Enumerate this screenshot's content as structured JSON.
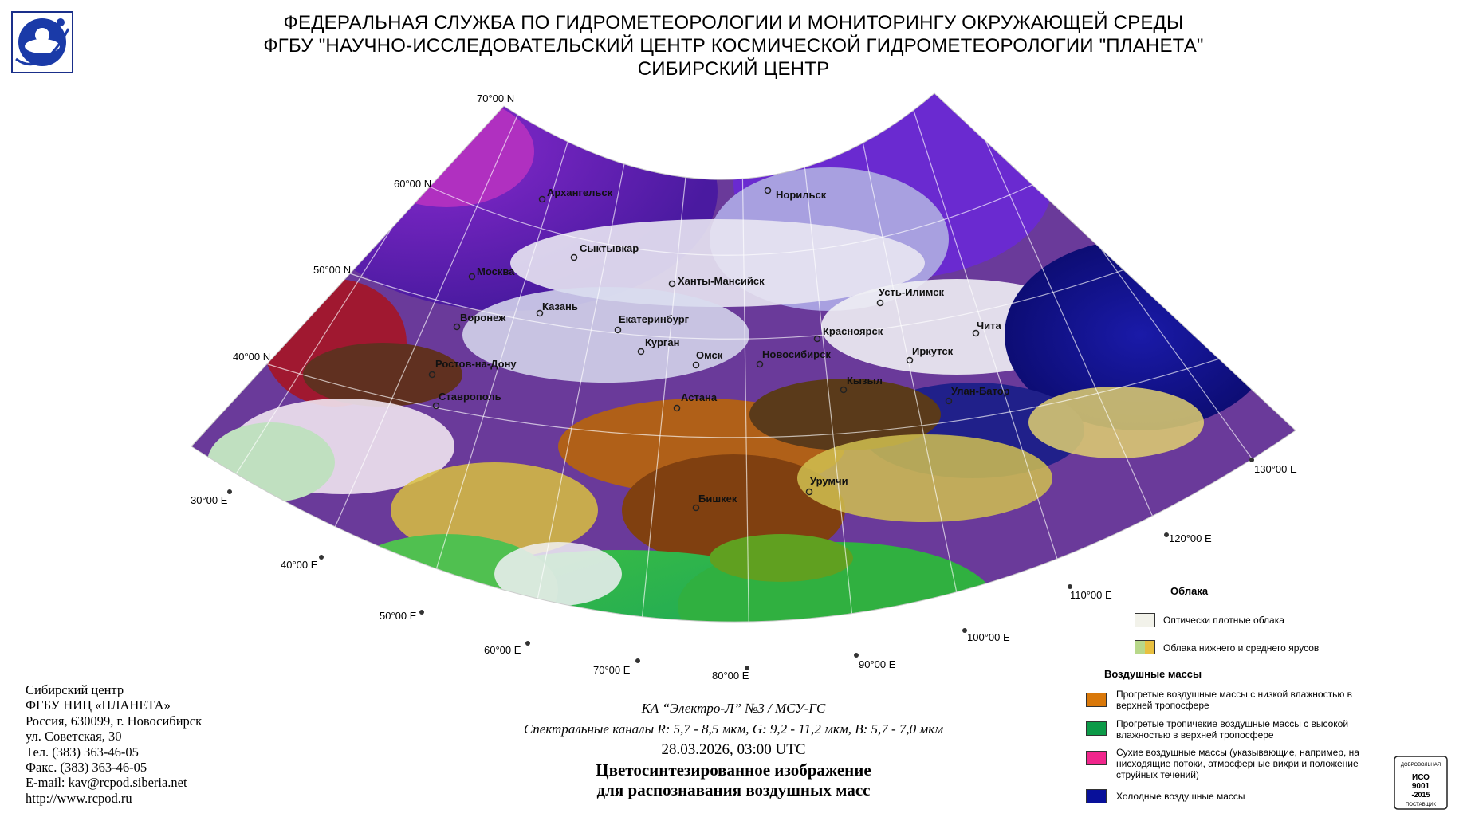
{
  "header": {
    "line1": "ФЕДЕРАЛЬНАЯ СЛУЖБА ПО ГИДРОМЕТЕОРОЛОГИИ И МОНИТОРИНГУ ОКРУЖАЮЩЕЙ СРЕДЫ",
    "line2": "ФГБУ \"НАУЧНО-ИССЛЕДОВАТЕЛЬСКИЙ ЦЕНТР КОСМИЧЕСКОЙ ГИДРОМЕТЕОРОЛОГИИ \"ПЛАНЕТА\"",
    "line3": "СИБИРСКИЙ ЦЕНТР"
  },
  "map": {
    "latitudes": [
      "70°00 N",
      "60°00 N",
      "50°00 N",
      "40°00 N"
    ],
    "longitudes": [
      "30°00 E",
      "40°00 E",
      "50°00 E",
      "60°00 E",
      "70°00 E",
      "80°00 E",
      "90°00 E",
      "100°00 E",
      "110°00 E",
      "120°00 E",
      "130°00 E"
    ],
    "cities": [
      "Архангельск",
      "Норильск",
      "Сыктывкар",
      "Москва",
      "Ханты-Мансийск",
      "Казань",
      "Усть-Илимск",
      "Воронеж",
      "Екатеринбург",
      "Красноярск",
      "Чита",
      "Курган",
      "Омск",
      "Новосибирск",
      "Иркутск",
      "Ростов-на-Дону",
      "Кызыл",
      "Улан-Батор",
      "Ставрополь",
      "Астана",
      "Урумчи",
      "Бишкек"
    ]
  },
  "satellite": {
    "line1": "КА “Электро-Л” №3 / МСУ-ГС",
    "line2": "Спектральные каналы R: 5,7 - 8,5 мкм, G: 9,2 - 11,2 мкм, B: 5,7 - 7,0 мкм",
    "datetime": "28.03.2026, 03:00 UTC",
    "title1": "Цветосинтезированное изображение",
    "title2": "для распознавания воздушных масс"
  },
  "contacts": [
    "Сибирский центр",
    "ФГБУ НИЦ «ПЛАНЕТА»",
    "Россия, 630099, г. Новосибирск",
    "ул. Советская, 30",
    "Тел. (383) 363-46-05",
    "Факс. (383) 363-46-05",
    "E-mail: kav@rcpod.siberia.net",
    "http://www.rcpod.ru"
  ],
  "legend": {
    "clouds_title": "Облака",
    "clouds": [
      {
        "label": "Оптически плотные облака",
        "color": "#f2f2ea"
      },
      {
        "label": "Облака нижнего и среднего ярусов",
        "color": "#b8d88a",
        "color2": "#e8c040"
      }
    ],
    "airmass_title": "Воздушные массы",
    "airmasses": [
      {
        "label": "Прогретые воздушные массы с низкой влажностью в верхней тропосфере",
        "color": "#d9780a"
      },
      {
        "label": "Прогретые тропичекие воздушные массы с высокой влажностью в верхней тропосфере",
        "color": "#0c9a48"
      },
      {
        "label": "Сухие воздушные массы (указывающие, например, на нисходящие потоки, атмосферные вихри и положение струйных течений)",
        "color": "#f0268c"
      },
      {
        "label": "Холодные воздушные массы",
        "color": "#08109a"
      }
    ]
  },
  "iso": {
    "line1": "ДОБРОВОЛЬНАЯ",
    "line2": "ИСО",
    "line3": "9001",
    "line4": "-2015",
    "line5": "ПОСТАВЩИК"
  }
}
